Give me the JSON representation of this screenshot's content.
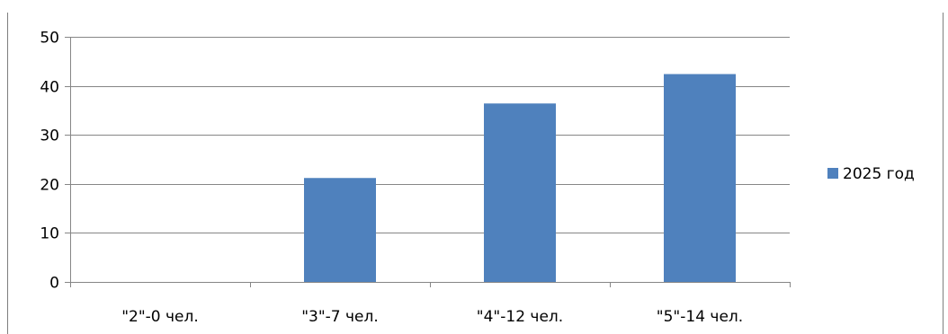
{
  "chart_data": {
    "type": "bar",
    "categories": [
      "\"2\"-0 чел.",
      "\"3\"-7 чел.",
      "\"4\"-12 чел.",
      "\"5\"-14 чел."
    ],
    "series": [
      {
        "name": "2025 год",
        "values": [
          0,
          21.2,
          36.4,
          42.4
        ],
        "color": "#4f81bd"
      }
    ],
    "ylim": [
      0,
      50
    ],
    "yticks": [
      0,
      10,
      20,
      30,
      40,
      50
    ],
    "grid": true,
    "legend_position": "right",
    "title": "",
    "xlabel": "",
    "ylabel": ""
  }
}
